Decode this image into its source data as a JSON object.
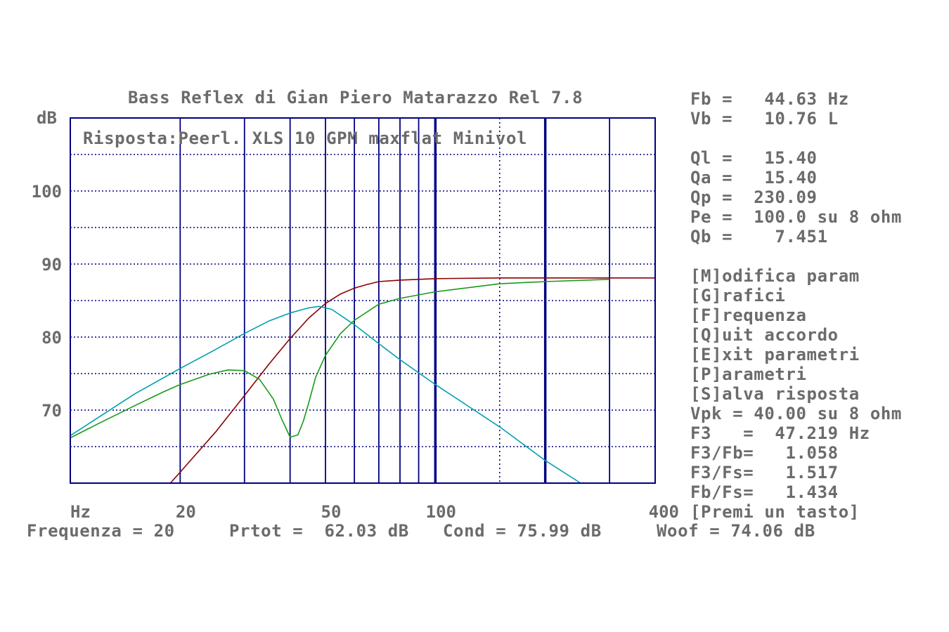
{
  "app": {
    "title": "Bass Reflex di Gian Piero Matarazzo Rel 7.8"
  },
  "params": {
    "fb": "Fb =   44.63 Hz",
    "vb": "Vb =   10.76 L",
    "ql": "Ql =   15.40",
    "qa": "Qa =   15.40",
    "qp": "Qp =  230.09",
    "pe": "Pe =  100.0 su 8 ohm",
    "qb": "Qb =    7.451"
  },
  "menu": {
    "items": [
      "[M]odifica param",
      "[G]rafici",
      "[F]requenza",
      "[Q]uit accordo",
      "[E]xit parametri",
      "[P]arametri",
      "[S]alva risposta"
    ]
  },
  "results": {
    "vpk": "Vpk = 40.00 su 8 ohm",
    "f3": "F3   =  47.219 Hz",
    "f3fb": "F3/Fb=   1.058",
    "f3fs": "F3/Fs=   1.517",
    "fbfs": "Fb/Fs=   1.434",
    "prompt": "[Premi un tasto]"
  },
  "status": {
    "frequenza": "Frequenza = 20",
    "prtot": "Prtot =  62.03 dB",
    "cond": "Cond = 75.99 dB",
    "woof": "Woof = 74.06 dB"
  },
  "colors": {
    "frame": "#000080",
    "grid": "#000080",
    "total": "#8b0000",
    "green": "#1a9a1a",
    "cyan": "#00a0b0",
    "text": "#6b6b6b"
  },
  "chart_data": {
    "type": "line",
    "title": "Risposta:Peerl. XLS 10 GPM maxflat Minivol",
    "ylabel": "dB",
    "xlabel": "Hz",
    "x_scale": "log",
    "xlim": [
      10,
      400
    ],
    "ylim": [
      60,
      110
    ],
    "y_ticks": [
      70,
      80,
      90,
      100
    ],
    "x_tick_labels": [
      {
        "value": 20,
        "label": "20"
      },
      {
        "value": 50,
        "label": "50"
      },
      {
        "value": 100,
        "label": "100"
      },
      {
        "value": 400,
        "label": "400"
      }
    ],
    "x_grid": [
      20,
      30,
      40,
      50,
      60,
      70,
      80,
      90,
      100,
      150,
      200,
      300
    ],
    "x_grid_heavy": [
      100,
      200
    ],
    "x_grid_dotted": [
      150
    ],
    "grid": true,
    "series": [
      {
        "color": "#8b0000",
        "x": [
          10,
          18.8,
          20,
          25,
          30,
          35,
          40,
          45,
          50,
          55,
          60,
          65,
          70,
          80,
          100,
          150,
          200,
          300,
          400
        ],
        "y": [
          60,
          60,
          61.5,
          67,
          72,
          76.3,
          79.8,
          82.6,
          84.6,
          85.9,
          86.7,
          87.2,
          87.6,
          87.8,
          88,
          88.1,
          88.1,
          88.1,
          88.1
        ]
      },
      {
        "color": "#1a9a1a",
        "x": [
          10,
          12,
          15,
          18,
          20,
          24,
          27,
          30,
          33,
          36,
          38,
          40,
          42,
          43.5,
          45,
          47,
          50,
          55,
          60,
          70,
          80,
          100,
          150,
          200,
          300
        ],
        "y": [
          66.2,
          68.2,
          70.6,
          72.5,
          73.5,
          74.9,
          75.5,
          75.4,
          74.2,
          71.5,
          68.7,
          66.3,
          66.6,
          68.5,
          71,
          74.5,
          77.5,
          80.5,
          82.3,
          84.5,
          85.3,
          86.2,
          87.3,
          87.6,
          87.9
        ]
      },
      {
        "color": "#00a0b0",
        "x": [
          10,
          15,
          20,
          25,
          30,
          35,
          40,
          45,
          48,
          52,
          60,
          70,
          80,
          100,
          150,
          200,
          250,
          300
        ],
        "y": [
          66.5,
          72.2,
          75.7,
          78.3,
          80.5,
          82.2,
          83.3,
          84,
          84.2,
          83.8,
          81.7,
          79.1,
          76.9,
          73.5,
          67.7,
          63.1,
          60,
          60
        ]
      }
    ]
  }
}
